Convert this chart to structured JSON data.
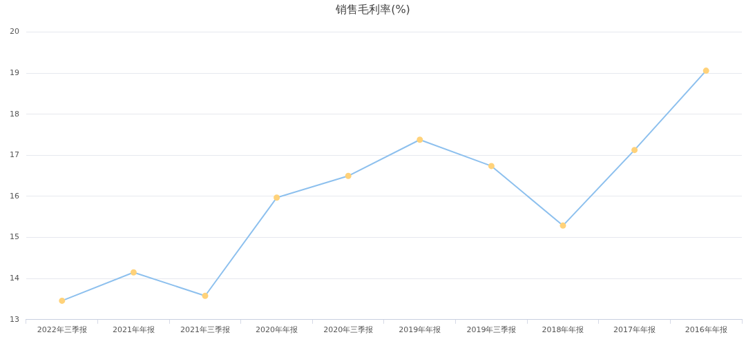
{
  "chart_data": {
    "type": "line",
    "title": "销售毛利率(%)",
    "categories": [
      "2022年三季报",
      "2021年年报",
      "2021年三季报",
      "2020年年报",
      "2020年三季报",
      "2019年年报",
      "2019年三季报",
      "2018年年报",
      "2017年年报",
      "2016年年报"
    ],
    "series": [
      {
        "color": "#8dc0ee",
        "values": [
          13.46,
          14.15,
          13.58,
          15.97,
          16.5,
          17.38,
          16.74,
          15.29,
          17.13,
          19.06
        ]
      }
    ],
    "ylim": [
      13,
      20
    ],
    "yticks": [
      13,
      14,
      15,
      16,
      17,
      18,
      19,
      20
    ],
    "grid": "y",
    "legend": false,
    "marker": "circle",
    "line_style": "solid"
  }
}
